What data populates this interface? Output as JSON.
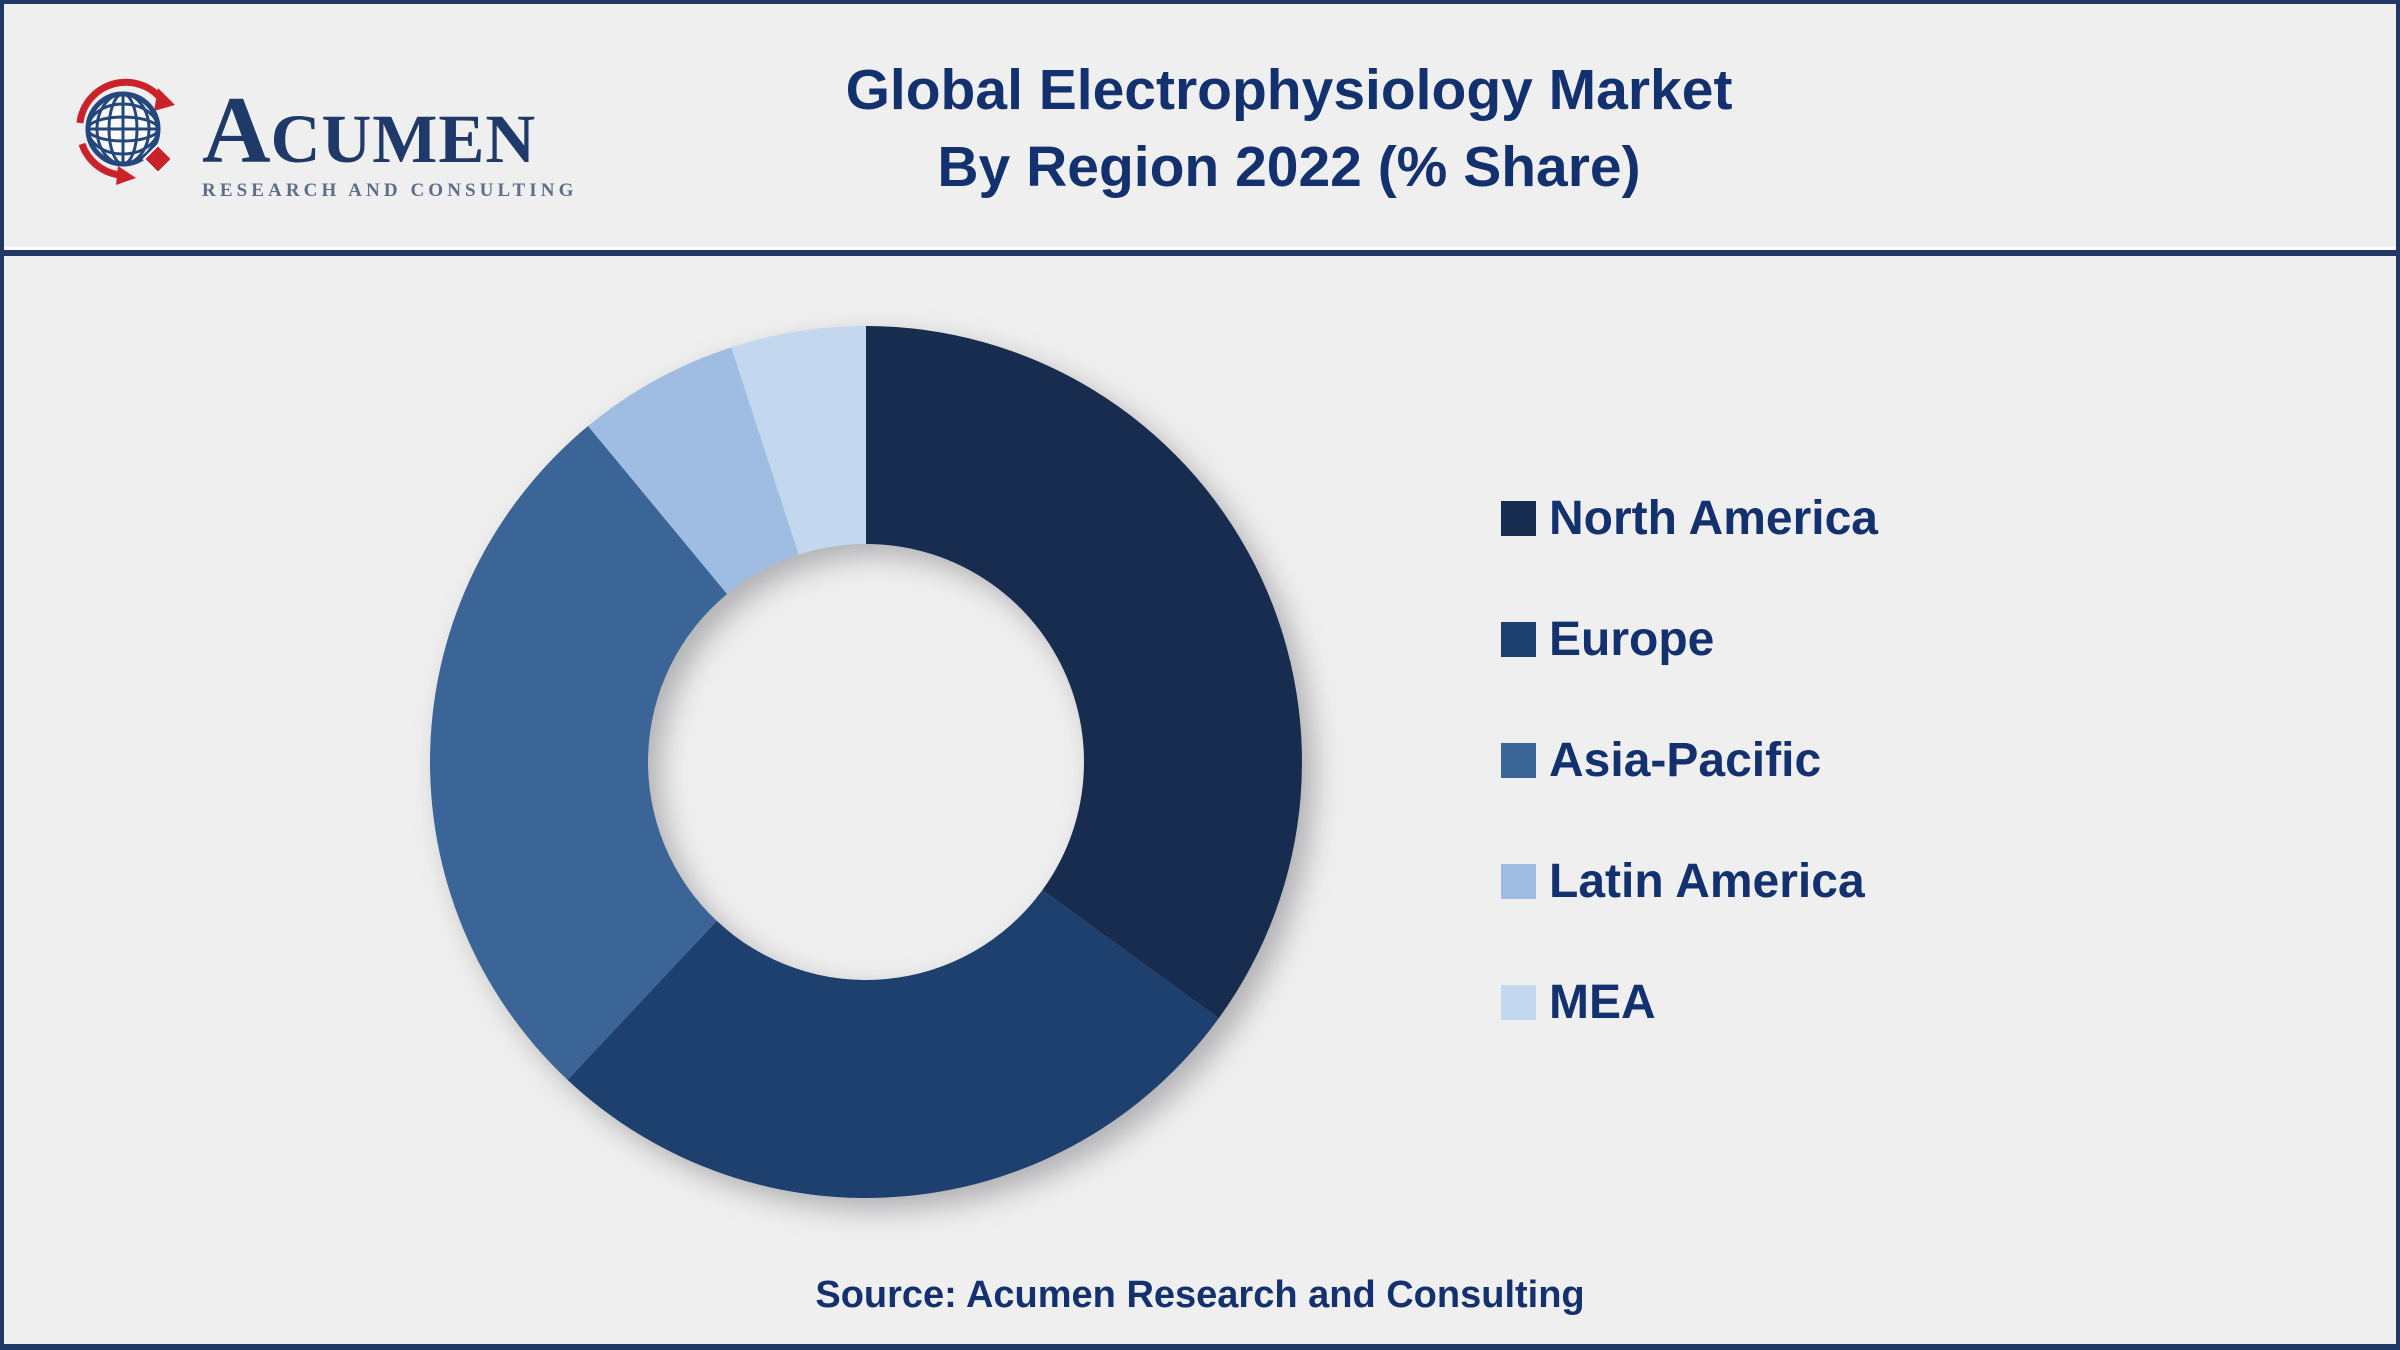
{
  "header": {
    "logo": {
      "name_initial": "A",
      "name_rest": "CUMEN",
      "tagline": "RESEARCH AND CONSULTING"
    },
    "title_line1": "Global Electrophysiology Market",
    "title_line2": "By Region 2022 (% Share)"
  },
  "chart_data": {
    "type": "pie",
    "subtype": "donut",
    "title": "Global Electrophysiology Market By Region 2022 (% Share)",
    "categories": [
      "North America",
      "Europe",
      "Asia-Pacific",
      "Latin America",
      "MEA"
    ],
    "values": [
      35,
      27,
      27,
      6,
      5
    ],
    "unit": "% share",
    "colors": [
      "#172C4E",
      "#1E406E",
      "#3B6497",
      "#9FBCE2",
      "#C3D7EF"
    ],
    "start_angle_deg": 0,
    "direction": "clockwise",
    "inner_radius_ratio": 0.5,
    "legend_position": "right",
    "data_labels_shown": false
  },
  "footer": {
    "source_text": "Source: Acumen Research and Consulting"
  },
  "colors": {
    "background": "#EFEFEF",
    "border": "#1F3864",
    "text": "#13316F",
    "logo_red": "#CB2229",
    "logo_navy": "#24477E"
  }
}
